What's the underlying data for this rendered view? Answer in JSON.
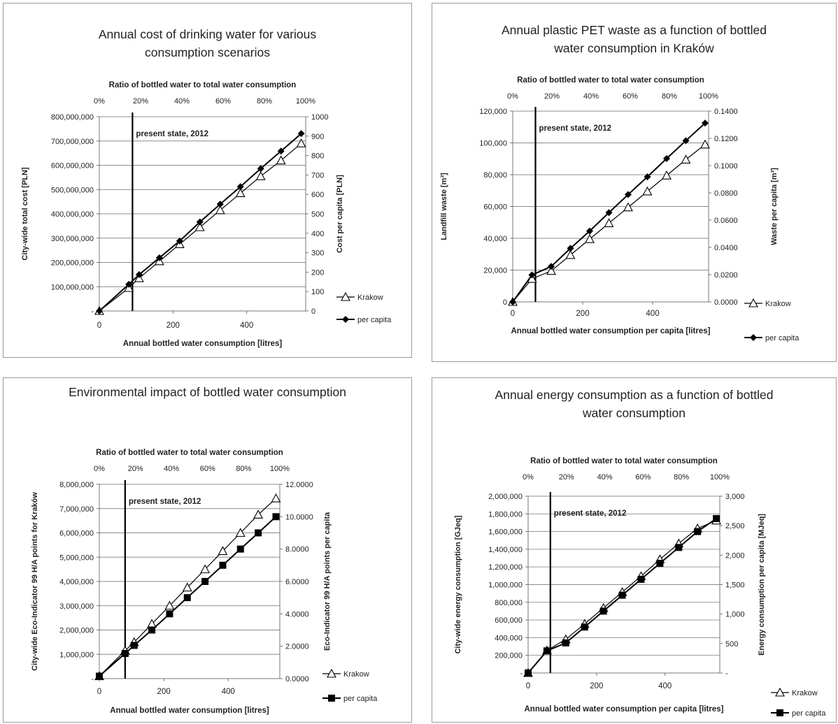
{
  "chart_data": [
    {
      "type": "line",
      "title": "Annual cost of drinking water  for various  consumption scenarios",
      "top_axis_label": "Ratio of bottled water to total water consumption",
      "top_ticks": [
        "0%",
        "20%",
        "40%",
        "60%",
        "80%",
        "100%"
      ],
      "xlabel": "Annual bottled water consumption [litres]",
      "x_ticks": [
        0,
        200,
        400
      ],
      "xlim": [
        0,
        560
      ],
      "ylabel": "City-wide total cost [PLN]",
      "ylim": [
        0,
        800000000
      ],
      "y_ticks": [
        "-",
        "100,000,000",
        "200,000,000",
        "300,000,000",
        "400,000,000",
        "500,000,000",
        "600,000,000",
        "700,000,000",
        "800,000,000"
      ],
      "y2label": "Cost per capita [PLN]",
      "y2lim": [
        0,
        1000
      ],
      "y2_ticks": [
        "0",
        "100",
        "200",
        "300",
        "400",
        "500",
        "600",
        "700",
        "800",
        "900",
        "1000"
      ],
      "annotation": "present state, 2012",
      "annotation_x": 90,
      "series": [
        {
          "name": "Krakow",
          "axis": "left",
          "marker": "triangle",
          "x": [
            0,
            80,
            108,
            163,
            218,
            273,
            328,
            383,
            438,
            493,
            548
          ],
          "y": [
            0,
            95000000,
            135000000,
            205000000,
            275000000,
            345000000,
            415000000,
            485000000,
            555000000,
            620000000,
            690000000
          ]
        },
        {
          "name": "per capita",
          "axis": "right",
          "marker": "diamond",
          "x": [
            0,
            80,
            108,
            163,
            218,
            273,
            328,
            383,
            438,
            493,
            548
          ],
          "y": [
            0,
            137,
            187,
            274,
            360,
            458,
            550,
            640,
            733,
            823,
            913
          ]
        }
      ],
      "legend": "right"
    },
    {
      "type": "line",
      "title": "Annual plastic PET waste as a function of bottled water consumption in Kraków",
      "top_axis_label": "Ratio of bottled water to total water consumption",
      "top_ticks": [
        "0%",
        "20%",
        "40%",
        "60%",
        "80%",
        "100%"
      ],
      "xlabel": "Annual bottled water consumption per capita [litres]",
      "x_ticks": [
        0,
        200,
        400
      ],
      "xlim": [
        0,
        560
      ],
      "ylabel": "Landfill waste [m³]",
      "ylim": [
        0,
        120000
      ],
      "y_ticks": [
        "0",
        "20,000",
        "40,000",
        "60,000",
        "80,000",
        "100,000",
        "120,000"
      ],
      "y2label": "Waste per capita [m³]",
      "y2lim": [
        0,
        0.14
      ],
      "y2_ticks": [
        "0.0000",
        "0.0200",
        "0.0400",
        "0.0600",
        "0.0800",
        "0.1000",
        "0.1200",
        "0.1400"
      ],
      "annotation": "present state, 2012",
      "annotation_x": 65,
      "series": [
        {
          "name": "Krakow",
          "axis": "left",
          "marker": "triangle",
          "x": [
            0,
            55,
            110,
            165,
            220,
            275,
            330,
            385,
            440,
            495,
            550
          ],
          "y": [
            0,
            14500,
            19500,
            29500,
            39500,
            49500,
            59500,
            69500,
            79500,
            89500,
            99000
          ]
        },
        {
          "name": "per capita",
          "axis": "right",
          "marker": "diamond",
          "x": [
            0,
            55,
            110,
            165,
            220,
            275,
            330,
            385,
            440,
            495,
            550
          ],
          "y": [
            0,
            0.0198,
            0.026,
            0.0393,
            0.052,
            0.0655,
            0.0788,
            0.0918,
            0.1052,
            0.1183,
            0.1312
          ]
        }
      ],
      "legend": "bottom-right"
    },
    {
      "type": "line",
      "title": "Environmental impact of bottled water consumption",
      "top_axis_label": "Ratio of bottled water to total water consumption",
      "top_ticks": [
        "0%",
        "20%",
        "40%",
        "60%",
        "80%",
        "100%"
      ],
      "xlabel": "Annual bottled water consumption [litres]",
      "x_ticks": [
        0,
        200,
        400
      ],
      "xlim": [
        0,
        560
      ],
      "ylabel": "City-wide Eco-Indicator 99 H/A points for Kraków",
      "ylim": [
        0,
        8000000
      ],
      "y_ticks": [
        "-",
        "1,000,000",
        "2,000,000",
        "3,000,000",
        "4,000,000",
        "5,000,000",
        "6,000,000",
        "7,000,000",
        "8,000,000"
      ],
      "y2label": "Eco-Indicator 99 H/A points per capita",
      "y2lim": [
        0,
        12
      ],
      "y2_ticks": [
        "0.0000",
        "2.0000",
        "4.0000",
        "6.0000",
        "8.0000",
        "10.0000",
        "12.0000"
      ],
      "annotation": "present state, 2012",
      "annotation_x": 80,
      "series": [
        {
          "name": "Krakow",
          "axis": "left",
          "marker": "triangle",
          "x": [
            0,
            80,
            108,
            163,
            218,
            273,
            328,
            383,
            438,
            493,
            548
          ],
          "y": [
            100000,
            1150000,
            1500000,
            2250000,
            3000000,
            3750000,
            4500000,
            5250000,
            6000000,
            6750000,
            7420000
          ]
        },
        {
          "name": "per capita",
          "axis": "right",
          "marker": "square",
          "x": [
            0,
            80,
            108,
            163,
            218,
            273,
            328,
            383,
            438,
            493,
            548
          ],
          "y": [
            0.15,
            1.55,
            2.05,
            3.0,
            4.0,
            5.0,
            6.0,
            7.0,
            8.0,
            9.0,
            10.0
          ]
        }
      ],
      "legend": "bottom-right"
    },
    {
      "type": "line",
      "title": "Annual energy consumption as a function of bottled water consumption",
      "top_axis_label": "Ratio of bottled water to total water consumption",
      "top_ticks": [
        "0%",
        "20%",
        "40%",
        "60%",
        "80%",
        "100%"
      ],
      "xlabel": "Annual bottled water consumption per capita [litres]",
      "x_ticks": [
        0,
        200,
        400
      ],
      "xlim": [
        0,
        560
      ],
      "ylabel": "City-wide energy consumption [GJeq]",
      "ylim": [
        0,
        2000000
      ],
      "y_ticks": [
        "-",
        "200,000",
        "400,000",
        "600,000",
        "800,000",
        "1,000,000",
        "1,200,000",
        "1,400,000",
        "1,600,000",
        "1,800,000",
        "2,000,000"
      ],
      "y2label": "Energy consumption per capita [MJeq]",
      "y2lim": [
        0,
        3000
      ],
      "y2_ticks": [
        "-",
        "500",
        "1,000",
        "1,500",
        "2,000",
        "2,500",
        "3,000"
      ],
      "annotation": "present state, 2012",
      "annotation_x": 65,
      "series": [
        {
          "name": "Krakow",
          "axis": "left",
          "marker": "triangle",
          "x": [
            0,
            55,
            110,
            165,
            220,
            275,
            330,
            385,
            440,
            495,
            550
          ],
          "y": [
            0,
            255000,
            380000,
            555000,
            735000,
            915000,
            1095000,
            1285000,
            1465000,
            1635000,
            1725000
          ]
        },
        {
          "name": "per capita",
          "axis": "right",
          "marker": "square",
          "x": [
            0,
            55,
            110,
            165,
            220,
            275,
            330,
            385,
            440,
            495,
            550
          ],
          "y": [
            0,
            375,
            510,
            780,
            1050,
            1320,
            1590,
            1860,
            2130,
            2400,
            2620
          ]
        }
      ],
      "legend": "bottom-right"
    }
  ]
}
